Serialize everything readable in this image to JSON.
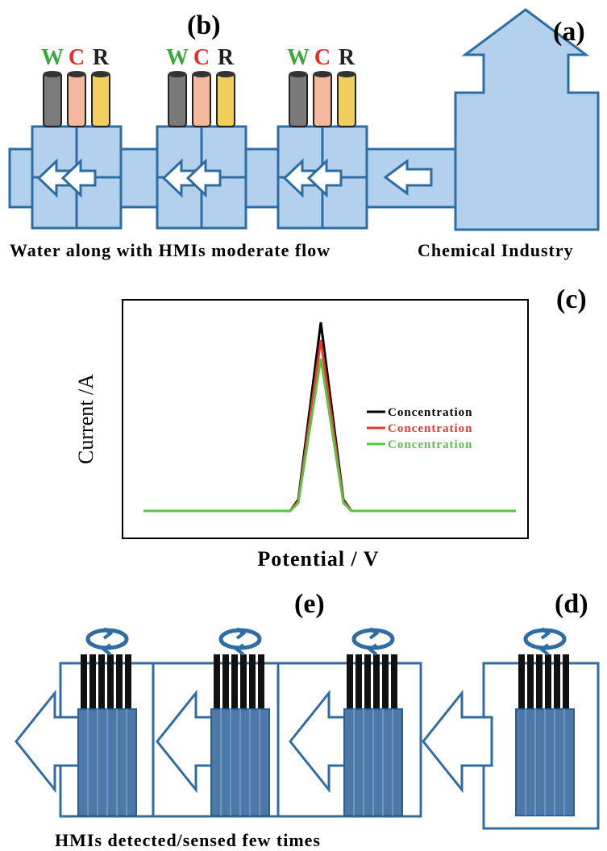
{
  "panel_a": {
    "label": "(a)",
    "caption": "Chemical Industry"
  },
  "panel_b": {
    "label": "(b)",
    "caption": "Water along with HMIs moderate flow",
    "electrodes": [
      [
        "W",
        "C",
        "R"
      ],
      [
        "W",
        "C",
        "R"
      ],
      [
        "W",
        "C",
        "R"
      ]
    ]
  },
  "panel_c": {
    "label": "(c)",
    "y_label": "Current /A",
    "x_label": "Potential / V",
    "legend": [
      "Concentration",
      "Concentration",
      "Concentration"
    ]
  },
  "panel_d": {
    "label": "(d)"
  },
  "panel_e": {
    "label": "(e)",
    "caption": "HMIs detected/sensed few times"
  }
}
